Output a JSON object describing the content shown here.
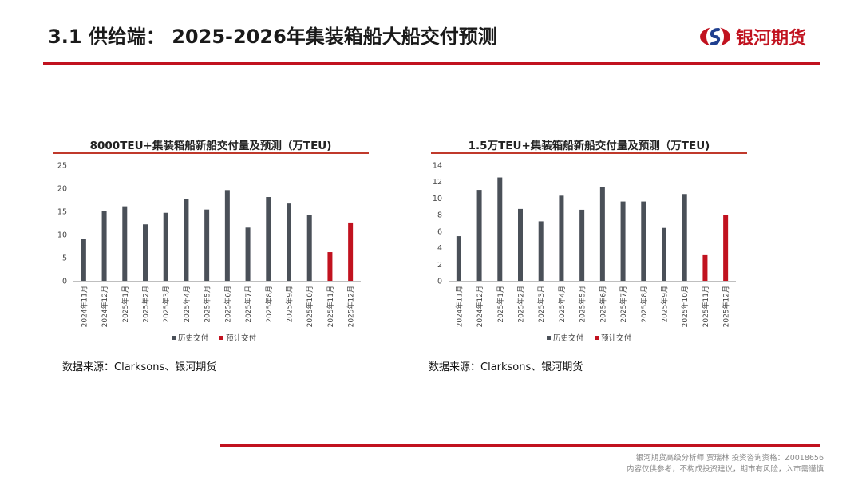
{
  "header": {
    "title": "3.1 供给端： 2025-2026年集装箱船大船交付预测",
    "logo_text": "银河期货"
  },
  "colors": {
    "accent": "#c1121f",
    "history": "#4a5058",
    "forecast": "#c1121f"
  },
  "chart_data": [
    {
      "type": "bar",
      "title": "8000TEU+集装箱船新船交付量及预测（万TEU)",
      "categories": [
        "2024年11月",
        "2024年12月",
        "2025年1月",
        "2025年2月",
        "2025年3月",
        "2025年4月",
        "2025年5月",
        "2025年6月",
        "2025年7月",
        "2025年8月",
        "2025年9月",
        "2025年10月",
        "2025年11月",
        "2025年12月"
      ],
      "series": [
        {
          "name": "历史交付",
          "values": [
            9.0,
            15.1,
            16.1,
            12.2,
            14.7,
            17.7,
            15.4,
            19.6,
            11.5,
            18.1,
            16.7,
            14.3,
            null,
            null
          ]
        },
        {
          "name": "预计交付",
          "values": [
            null,
            null,
            null,
            null,
            null,
            null,
            null,
            null,
            null,
            null,
            null,
            null,
            6.2,
            12.6
          ]
        }
      ],
      "ylim": [
        0,
        25
      ],
      "yticks": [
        0,
        5,
        10,
        15,
        20,
        25
      ],
      "legend": "bottom",
      "grid": false
    },
    {
      "type": "bar",
      "title": "1.5万TEU+集装箱船新船交付量及预测（万TEU)",
      "categories": [
        "2024年11月",
        "2024年12月",
        "2025年1月",
        "2025年2月",
        "2025年3月",
        "2025年4月",
        "2025年5月",
        "2025年6月",
        "2025年7月",
        "2025年8月",
        "2025年9月",
        "2025年10月",
        "2025年11月",
        "2025年12月"
      ],
      "series": [
        {
          "name": "历史交付",
          "values": [
            5.4,
            11.0,
            12.5,
            8.7,
            7.2,
            10.3,
            8.6,
            11.3,
            9.6,
            9.6,
            6.4,
            10.5,
            null,
            null
          ]
        },
        {
          "name": "预计交付",
          "values": [
            null,
            null,
            null,
            null,
            null,
            null,
            null,
            null,
            null,
            null,
            null,
            null,
            3.1,
            8.0
          ]
        }
      ],
      "ylim": [
        0,
        14
      ],
      "yticks": [
        0,
        2,
        4,
        6,
        8,
        10,
        12,
        14
      ],
      "legend": "bottom",
      "grid": false
    }
  ],
  "sources": [
    "数据来源：Clarksons、银河期货",
    "数据来源：Clarksons、银河期货"
  ],
  "footer": {
    "line1": "银河期货高级分析师 贾瑞林 投资咨询资格：Z0018656",
    "line2": "内容仅供参考，不构成投资建议，期市有风险，入市需谨慎"
  }
}
